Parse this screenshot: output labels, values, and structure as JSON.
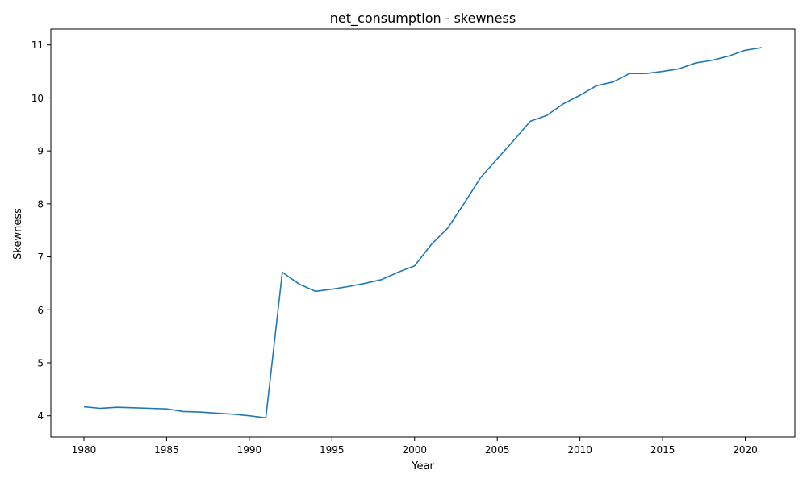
{
  "chart_data": {
    "type": "line",
    "title": "net_consumption - skewness",
    "xlabel": "Year",
    "ylabel": "Skewness",
    "xlim": [
      1978,
      2023
    ],
    "ylim": [
      3.6,
      11.3
    ],
    "x_ticks": [
      1980,
      1985,
      1990,
      1995,
      2000,
      2005,
      2010,
      2015,
      2020
    ],
    "y_ticks": [
      4,
      5,
      6,
      7,
      8,
      9,
      10,
      11
    ],
    "grid": false,
    "series": [
      {
        "color": "#1f77b4",
        "x": [
          1980,
          1981,
          1982,
          1983,
          1984,
          1985,
          1986,
          1987,
          1988,
          1989,
          1990,
          1991,
          1992,
          1993,
          1994,
          1995,
          1996,
          1997,
          1998,
          1999,
          2000,
          2001,
          2002,
          2003,
          2004,
          2005,
          2006,
          2007,
          2008,
          2009,
          2010,
          2011,
          2012,
          2013,
          2014,
          2015,
          2016,
          2017,
          2018,
          2019,
          2020,
          2021
        ],
        "y": [
          4.17,
          4.14,
          4.16,
          4.15,
          4.14,
          4.13,
          4.08,
          4.07,
          4.05,
          4.03,
          4.0,
          3.96,
          6.71,
          6.49,
          6.35,
          6.39,
          6.44,
          6.5,
          6.57,
          6.71,
          6.83,
          7.23,
          7.54,
          8.01,
          8.5,
          8.85,
          9.2,
          9.56,
          9.67,
          9.89,
          10.05,
          10.23,
          10.3,
          10.46,
          10.46,
          10.5,
          10.55,
          10.66,
          10.71,
          10.79,
          10.9,
          10.95
        ]
      }
    ]
  }
}
